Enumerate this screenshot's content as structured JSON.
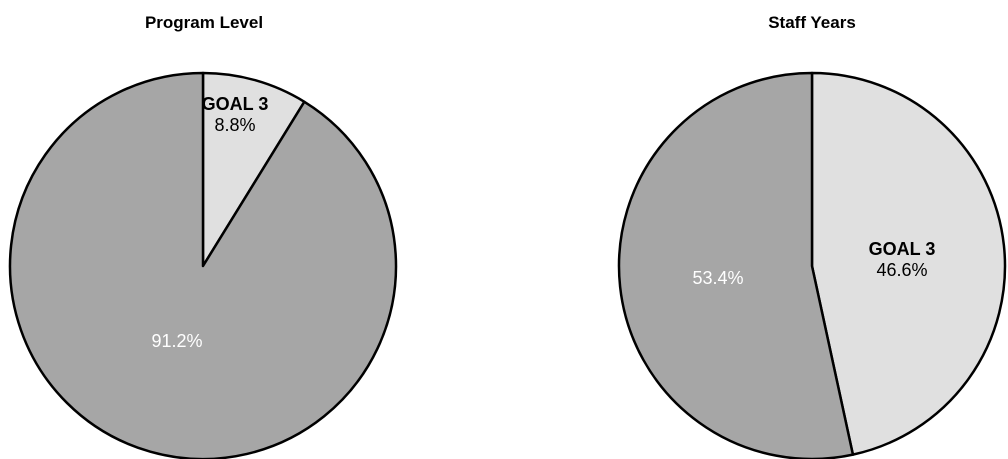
{
  "chart_data": [
    {
      "type": "pie",
      "title": "Program Level",
      "slices": [
        {
          "label": "GOAL 3",
          "value": 8.8,
          "display": "8.8%",
          "color": "#e0e0e0",
          "text_color": "#000000"
        },
        {
          "label": "",
          "value": 91.2,
          "display": "91.2%",
          "color": "#a6a6a6",
          "text_color": "#ffffff"
        }
      ],
      "start": "12 o'clock",
      "direction": "clockwise"
    },
    {
      "type": "pie",
      "title": "Staff Years",
      "slices": [
        {
          "label": "GOAL 3",
          "value": 46.6,
          "display": "46.6%",
          "color": "#e0e0e0",
          "text_color": "#000000"
        },
        {
          "label": "",
          "value": 53.4,
          "display": "53.4%",
          "color": "#a6a6a6",
          "text_color": "#ffffff"
        }
      ],
      "start": "12 o'clock",
      "direction": "clockwise"
    }
  ]
}
